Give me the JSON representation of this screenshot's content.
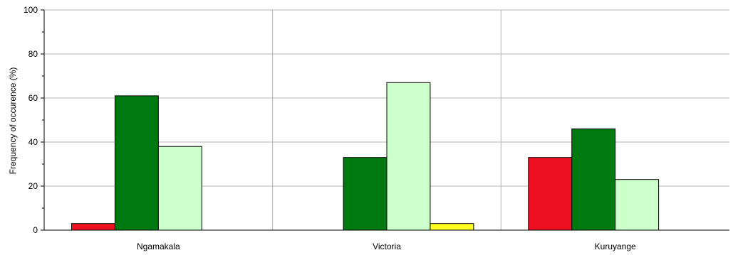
{
  "chart_data": {
    "type": "bar",
    "title": "",
    "xlabel": "",
    "ylabel": "Frequency of occurence (%)",
    "ylim": [
      0,
      100
    ],
    "yticks": [
      0,
      20,
      40,
      60,
      80,
      100
    ],
    "grid": true,
    "legend": "none",
    "categories": [
      "Ngamakala",
      "Victoria",
      "Kuruyange"
    ],
    "series": [
      {
        "color": "#ee1122",
        "values": [
          3,
          0,
          33
        ]
      },
      {
        "color": "#007a10",
        "values": [
          61,
          33,
          46
        ]
      },
      {
        "color": "#ccffcc",
        "values": [
          38,
          67,
          23
        ]
      },
      {
        "color": "#ffff22",
        "values": [
          0,
          3,
          0
        ]
      }
    ]
  }
}
